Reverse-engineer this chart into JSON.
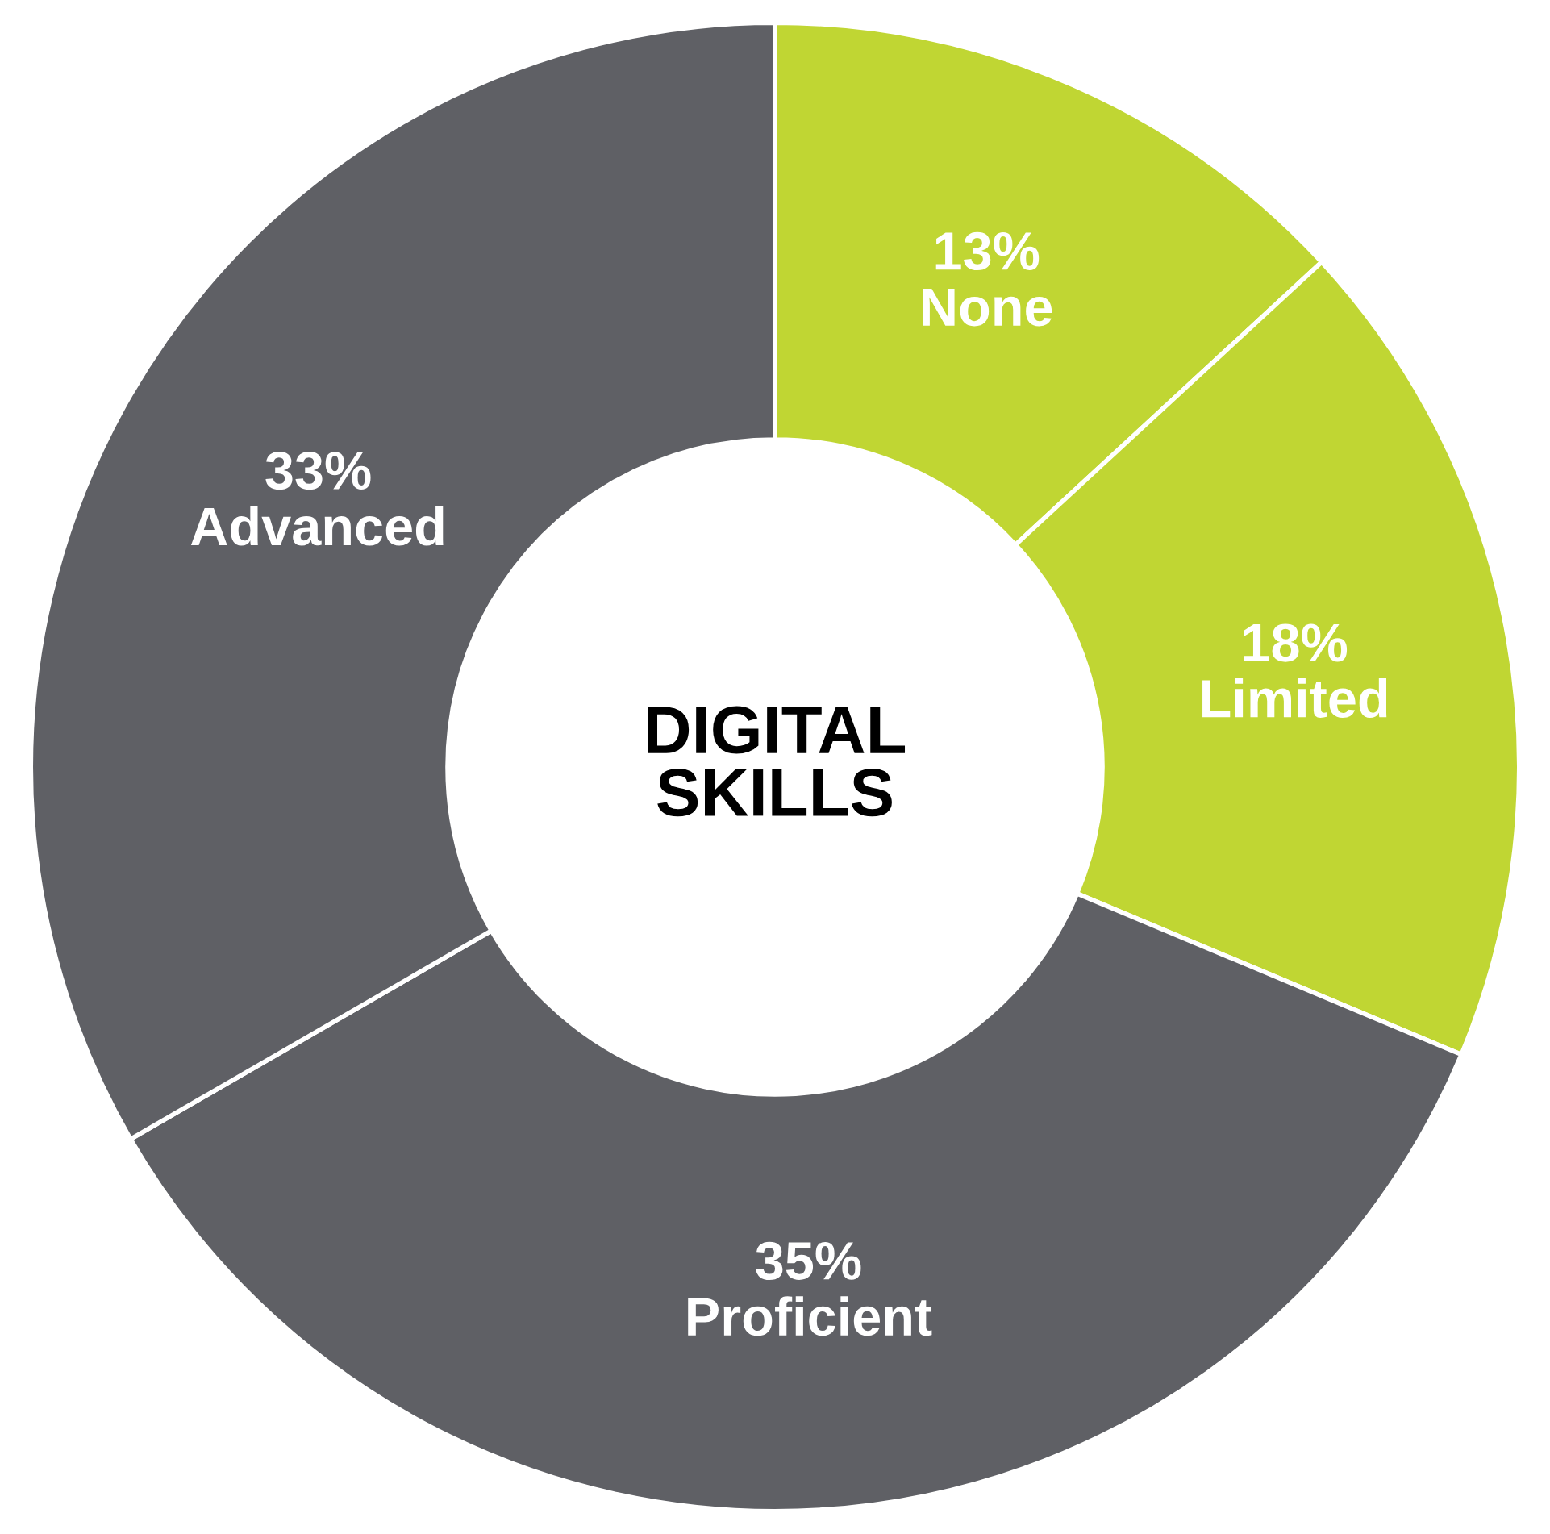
{
  "chart_data": {
    "type": "donut",
    "title": "DIGITAL SKILLS",
    "categories": [
      "None",
      "Limited",
      "Proficient",
      "Advanced"
    ],
    "values": [
      13,
      18,
      35,
      33
    ],
    "value_labels": [
      "13%",
      "18%",
      "35%",
      "33%"
    ],
    "colors": [
      "#c0d633",
      "#c0d633",
      "#5f6065",
      "#5f6065"
    ],
    "legend": false
  }
}
